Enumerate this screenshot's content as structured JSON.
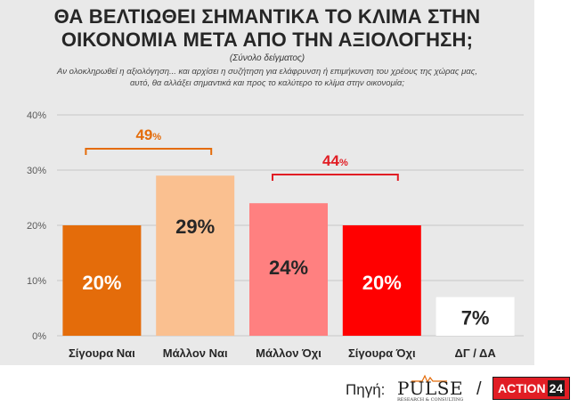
{
  "title_line1": "ΘΑ ΒΕΛΤΙΩΘΕΙ ΣΗΜΑΝΤΙΚΑ ΤΟ ΚΛΙΜΑ ΣΤΗΝ",
  "title_line2": "ΟΙΚΟΝΟΜΙΑ ΜΕΤΑ ΑΠΟ ΤΗΝ ΑΞΙΟΛΟΓΗΣΗ;",
  "subtitle": "(Σύνολο δείγματος)",
  "question": "Αν ολοκληρωθεί η αξιολόγηση... και αρχίσει η συζήτηση για ελάφρυνση ή επιμήκυνση του χρέους της χώρας μας, αυτό, θα αλλάξει σημαντικά και προς το καλύτερο το κλίμα στην οικονομία;",
  "chart_data": {
    "type": "bar",
    "categories": [
      "Σίγουρα Ναι",
      "Μάλλον Ναι",
      "Μάλλον Όχι",
      "Σίγουρα Όχι",
      "ΔΓ / ΔΑ"
    ],
    "values": [
      20,
      29,
      24,
      20,
      7
    ],
    "value_labels": [
      "20%",
      "29%",
      "24%",
      "20%",
      "7%"
    ],
    "colors": [
      "#e46c0a",
      "#fac090",
      "#ff8080",
      "#ff0000",
      "#ffffff"
    ],
    "label_colors": [
      "#ffffff",
      "#262626",
      "#262626",
      "#ffffff",
      "#262626"
    ],
    "yticks": [
      "0%",
      "10%",
      "20%",
      "30%",
      "40%"
    ],
    "ylim": [
      0,
      40
    ],
    "groups": [
      {
        "label": "49",
        "suffix": "%",
        "from": 0,
        "to": 1,
        "color": "#e46c0a"
      },
      {
        "label": "44",
        "suffix": "%",
        "from": 2,
        "to": 3,
        "color": "#e11d24"
      }
    ]
  },
  "footer": {
    "source_label": "Πηγή:",
    "pulse": "PULSE",
    "pulse_tagline": "RESEARCH & CONSULTING",
    "slash": "/",
    "action_word": "ACTION",
    "action_number": "24"
  }
}
